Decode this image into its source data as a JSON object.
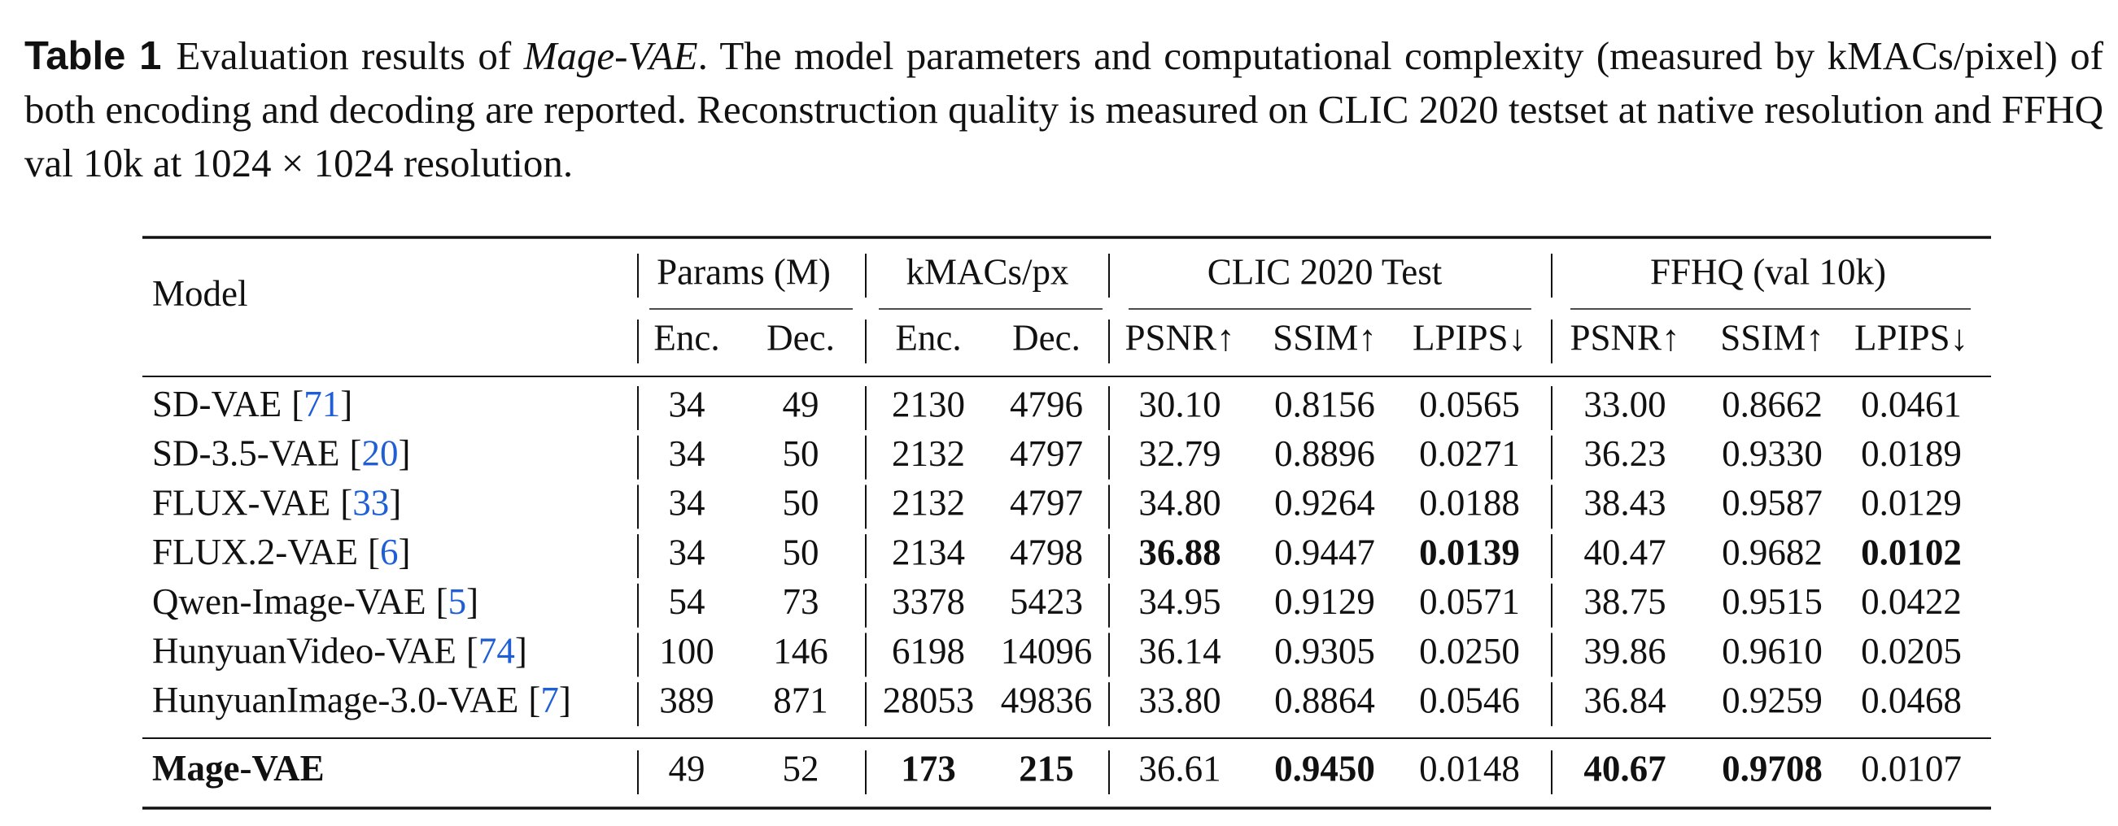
{
  "caption": {
    "label": "Table 1",
    "text_before": "Evaluation results of ",
    "emphasis": "Mage-VAE",
    "text_after": ". The model parameters and computational complexity (measured by kMACs/pixel) of both encoding and decoding are reported. Reconstruction quality is measured on CLIC 2020 testset at native resolution and FFHQ val 10k at 1024 × 1024 resolution."
  },
  "table": {
    "model_header": "Model",
    "groups": [
      {
        "title": "Params (M)",
        "columns": [
          "Enc.",
          "Dec."
        ]
      },
      {
        "title": "kMACs/px",
        "columns": [
          "Enc.",
          "Dec."
        ]
      },
      {
        "title": "CLIC 2020 Test",
        "columns": [
          "PSNR↑",
          "SSIM↑",
          "LPIPS↓"
        ]
      },
      {
        "title": "FFHQ (val 10k)",
        "columns": [
          "PSNR↑",
          "SSIM↑",
          "LPIPS↓"
        ]
      }
    ],
    "rows": [
      {
        "model": "SD-VAE",
        "ref": "[71]",
        "cells": [
          "34",
          "49",
          "2130",
          "4796",
          "30.10",
          "0.8156",
          "0.0565",
          "33.00",
          "0.8662",
          "0.0461"
        ],
        "bold": []
      },
      {
        "model": "SD-3.5-VAE",
        "ref": "[20]",
        "cells": [
          "34",
          "50",
          "2132",
          "4797",
          "32.79",
          "0.8896",
          "0.0271",
          "36.23",
          "0.9330",
          "0.0189"
        ],
        "bold": []
      },
      {
        "model": "FLUX-VAE",
        "ref": "[33]",
        "cells": [
          "34",
          "50",
          "2132",
          "4797",
          "34.80",
          "0.9264",
          "0.0188",
          "38.43",
          "0.9587",
          "0.0129"
        ],
        "bold": []
      },
      {
        "model": "FLUX.2-VAE",
        "ref": "[6]",
        "cells": [
          "34",
          "50",
          "2134",
          "4798",
          "36.88",
          "0.9447",
          "0.0139",
          "40.47",
          "0.9682",
          "0.0102"
        ],
        "bold": [
          4,
          6,
          9
        ]
      },
      {
        "model": "Qwen-Image-VAE",
        "ref": "[5]",
        "cells": [
          "54",
          "73",
          "3378",
          "5423",
          "34.95",
          "0.9129",
          "0.0571",
          "38.75",
          "0.9515",
          "0.0422"
        ],
        "bold": []
      },
      {
        "model": "HunyuanVideo-VAE",
        "ref": "[74]",
        "cells": [
          "100",
          "146",
          "6198",
          "14096",
          "36.14",
          "0.9305",
          "0.0250",
          "39.86",
          "0.9610",
          "0.0205"
        ],
        "bold": []
      },
      {
        "model": "HunyuanImage-3.0-VAE",
        "ref": "[7]",
        "cells": [
          "389",
          "871",
          "28053",
          "49836",
          "33.80",
          "0.8864",
          "0.0546",
          "36.84",
          "0.9259",
          "0.0468"
        ],
        "bold": []
      }
    ],
    "highlight_row": {
      "model": "Mage-VAE",
      "cells": [
        "49",
        "52",
        "173",
        "215",
        "36.61",
        "0.9450",
        "0.0148",
        "40.67",
        "0.9708",
        "0.0107"
      ],
      "bold": [
        2,
        3,
        5,
        7,
        8
      ]
    }
  }
}
